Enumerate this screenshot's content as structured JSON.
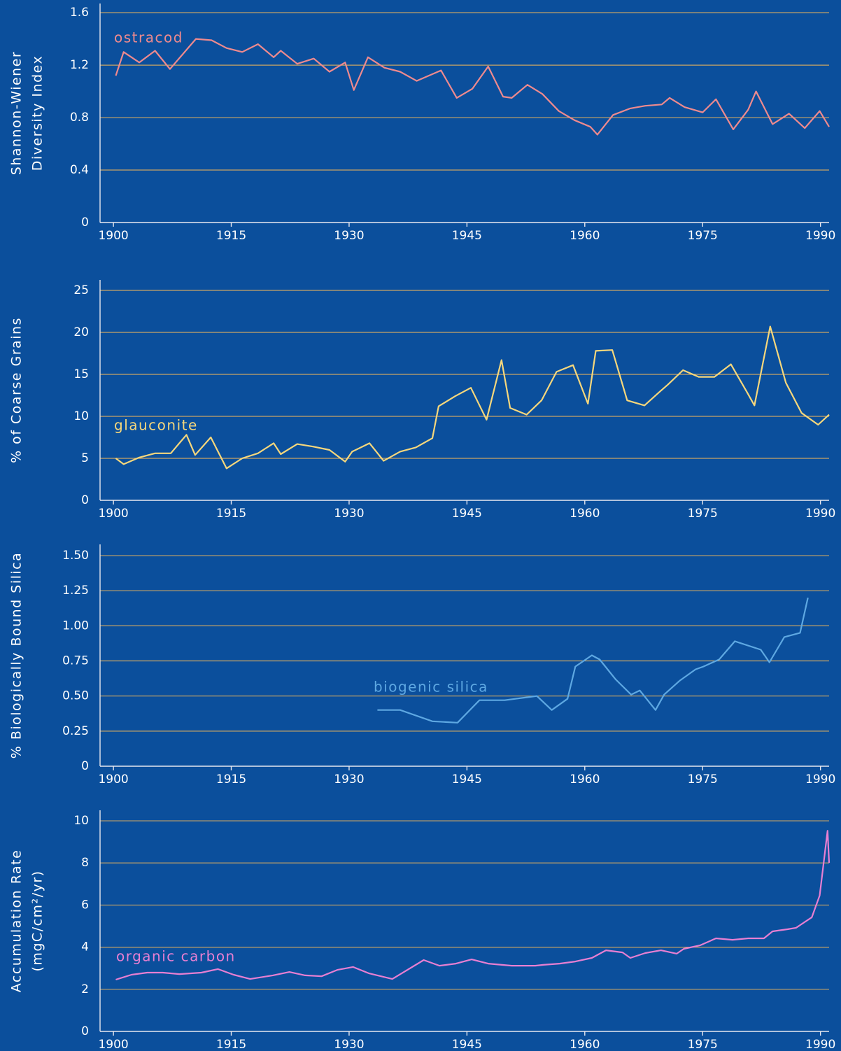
{
  "chart_data": [
    {
      "type": "line",
      "ylabel": [
        "Shannon-Wiener",
        "Diversity Index"
      ],
      "xlim": [
        1898.3,
        1991.1
      ],
      "ylim": [
        0,
        1.67
      ],
      "xticks": [
        1900,
        1915,
        1930,
        1945,
        1960,
        1975,
        1990
      ],
      "yticks": [
        0,
        0.4,
        0.8,
        1.2,
        1.6
      ],
      "grid": true,
      "series": [
        {
          "name": "ostracod",
          "color": "#ee8a8e",
          "x": [
            1900.3,
            1901.3,
            1903.3,
            1905.3,
            1907.2,
            1910.5,
            1912.5,
            1914.4,
            1916.4,
            1918.4,
            1920.4,
            1921.3,
            1923.4,
            1925.5,
            1927.5,
            1929.5,
            1930.6,
            1932.4,
            1934.5,
            1936.5,
            1938.6,
            1941.7,
            1943.7,
            1945.7,
            1947.7,
            1949.6,
            1950.7,
            1952.7,
            1954.6,
            1956.7,
            1958.7,
            1960.7,
            1961.6,
            1963.6,
            1965.8,
            1967.7,
            1969.8,
            1970.8,
            1972.7,
            1975.0,
            1976.7,
            1978.9,
            1980.8,
            1981.8,
            1983.9,
            1986.0,
            1988.0,
            1989.9,
            1991.1
          ],
          "values": [
            1.12,
            1.3,
            1.22,
            1.31,
            1.17,
            1.4,
            1.39,
            1.33,
            1.3,
            1.36,
            1.26,
            1.31,
            1.21,
            1.25,
            1.15,
            1.22,
            1.01,
            1.26,
            1.18,
            1.15,
            1.08,
            1.16,
            0.95,
            1.02,
            1.19,
            0.96,
            0.95,
            1.05,
            0.98,
            0.85,
            0.78,
            0.73,
            0.67,
            0.82,
            0.87,
            0.89,
            0.9,
            0.95,
            0.88,
            0.84,
            0.94,
            0.71,
            0.86,
            1.0,
            0.75,
            0.83,
            0.72,
            0.85,
            0.73
          ]
        }
      ]
    },
    {
      "type": "line",
      "ylabel": [
        "% of Coarse Grains"
      ],
      "xlim": [
        1898.3,
        1991.1
      ],
      "ylim": [
        0,
        26.25
      ],
      "xticks": [
        1900,
        1915,
        1930,
        1945,
        1960,
        1975,
        1990
      ],
      "yticks": [
        0,
        5,
        10,
        15,
        20,
        25
      ],
      "grid": true,
      "series": [
        {
          "name": "glauconite",
          "color": "#f6d77c",
          "x": [
            1900.3,
            1901.3,
            1903.3,
            1905.3,
            1907.3,
            1909.3,
            1910.4,
            1912.4,
            1914.4,
            1916.4,
            1918.4,
            1920.4,
            1921.3,
            1923.4,
            1925.4,
            1927.5,
            1929.5,
            1930.4,
            1932.6,
            1934.4,
            1936.5,
            1938.5,
            1940.6,
            1941.4,
            1943.5,
            1945.5,
            1947.5,
            1949.4,
            1950.5,
            1952.6,
            1954.5,
            1956.4,
            1958.5,
            1960.4,
            1961.4,
            1963.5,
            1965.4,
            1967.6,
            1969.5,
            1970.6,
            1972.5,
            1974.5,
            1976.5,
            1978.6,
            1980.7,
            1981.6,
            1983.6,
            1985.6,
            1987.6,
            1989.7,
            1991.1
          ],
          "values": [
            5.0,
            4.3,
            5.1,
            5.6,
            5.6,
            7.8,
            5.4,
            7.5,
            3.8,
            5.0,
            5.6,
            6.8,
            5.5,
            6.7,
            6.4,
            6.0,
            4.6,
            5.8,
            6.8,
            4.7,
            5.8,
            6.3,
            7.4,
            11.2,
            12.4,
            13.4,
            9.6,
            16.7,
            11.0,
            10.2,
            11.9,
            15.3,
            16.1,
            11.5,
            17.8,
            17.9,
            11.9,
            11.3,
            12.9,
            13.8,
            15.5,
            14.7,
            14.7,
            16.2,
            12.8,
            11.3,
            20.7,
            14.0,
            10.4,
            9.0,
            10.2
          ]
        }
      ]
    },
    {
      "type": "line",
      "ylabel": [
        "% Biologically Bound Silica"
      ],
      "xlim": [
        1898.3,
        1991.1
      ],
      "ylim": [
        0,
        1.58
      ],
      "xticks": [
        1900,
        1915,
        1930,
        1945,
        1960,
        1975,
        1990
      ],
      "yticks": [
        0,
        0.25,
        {
          "value": 0.5,
          "label": "0.50"
        },
        0.75,
        {
          "value": 1,
          "label": "1.00"
        },
        1.25,
        {
          "value": 1.5,
          "label": "1.50"
        }
      ],
      "grid": true,
      "series": [
        {
          "name": "biogenic silica",
          "color": "#5ea8e2",
          "x": [
            1933.6,
            1936.5,
            1940.6,
            1943.8,
            1946.6,
            1949.8,
            1953.9,
            1955.8,
            1957.8,
            1958.8,
            1960.9,
            1961.9,
            1963.9,
            1965.9,
            1967.0,
            1969.0,
            1970.1,
            1972.1,
            1974.1,
            1975.1,
            1977.1,
            1979.1,
            1982.4,
            1983.5,
            1985.4,
            1987.4,
            1988.4
          ],
          "values": [
            0.4,
            0.4,
            0.32,
            0.31,
            0.47,
            0.47,
            0.5,
            0.4,
            0.48,
            0.71,
            0.79,
            0.76,
            0.62,
            0.51,
            0.54,
            0.4,
            0.51,
            0.61,
            0.69,
            0.71,
            0.76,
            0.89,
            0.83,
            0.74,
            0.92,
            0.95,
            1.2
          ]
        }
      ]
    },
    {
      "type": "line",
      "ylabel": [
        "Accumulation Rate",
        "(mgC/cm²/yr)"
      ],
      "xlim": [
        1898.3,
        1991.1
      ],
      "ylim": [
        0,
        10.5
      ],
      "xticks": [
        1900,
        1915,
        1930,
        1945,
        1960,
        1975,
        1990
      ],
      "yticks": [
        0,
        2,
        4,
        6,
        8,
        10
      ],
      "grid": true,
      "series": [
        {
          "name": "organic carbon",
          "color": "#e77fd2",
          "x": [
            1900.3,
            1902.3,
            1904.3,
            1906.3,
            1908.4,
            1911.2,
            1913.3,
            1915.3,
            1917.4,
            1920.3,
            1922.4,
            1924.4,
            1926.5,
            1928.5,
            1930.5,
            1932.5,
            1935.5,
            1939.5,
            1941.5,
            1943.6,
            1945.6,
            1947.7,
            1950.7,
            1953.7,
            1954.7,
            1956.8,
            1958.8,
            1960.9,
            1962.7,
            1964.8,
            1965.8,
            1967.7,
            1969.7,
            1971.7,
            1972.6,
            1974.7,
            1976.7,
            1978.8,
            1980.8,
            1982.8,
            1983.9,
            1985.8,
            1986.9,
            1988.9,
            1989.9,
            1990.9,
            1991.1
          ],
          "values": [
            2.46,
            2.69,
            2.79,
            2.79,
            2.72,
            2.79,
            2.96,
            2.69,
            2.49,
            2.66,
            2.82,
            2.66,
            2.62,
            2.92,
            3.06,
            2.76,
            2.49,
            3.39,
            3.12,
            3.22,
            3.42,
            3.22,
            3.12,
            3.12,
            3.16,
            3.22,
            3.32,
            3.49,
            3.85,
            3.75,
            3.49,
            3.72,
            3.85,
            3.69,
            3.92,
            4.09,
            4.42,
            4.35,
            4.42,
            4.42,
            4.75,
            4.85,
            4.92,
            5.42,
            6.45,
            9.53,
            8.0
          ]
        }
      ]
    }
  ]
}
